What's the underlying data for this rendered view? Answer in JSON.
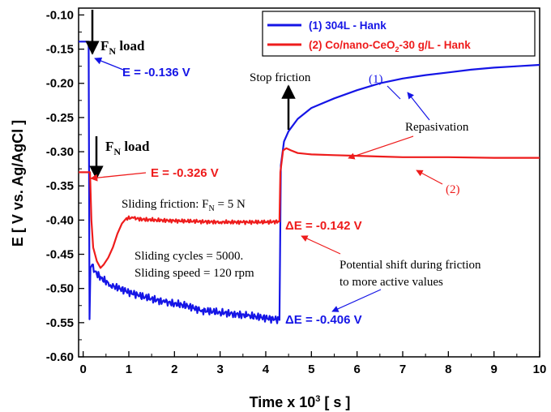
{
  "chart_data": {
    "type": "line",
    "xlabel": "Time x 10³ [ s ]",
    "ylabel": "E [ V vs. Ag/AgCl ]",
    "xlim": [
      -0.1,
      10
    ],
    "ylim": [
      -0.6,
      -0.09
    ],
    "xticks": [
      "0",
      "1",
      "2",
      "3",
      "4",
      "5",
      "6",
      "7",
      "8",
      "9",
      "10"
    ],
    "yticks": [
      "-0.10",
      "-0.15",
      "-0.20",
      "-0.25",
      "-0.30",
      "-0.35",
      "-0.40",
      "-0.45",
      "-0.50",
      "-0.55",
      "-0.60"
    ],
    "grid": false,
    "legend_position": "top-right",
    "series": [
      {
        "name": "(1) 304L - Hank",
        "color": "#1515e6",
        "points": [
          [
            -0.1,
            -0.139
          ],
          [
            0.08,
            -0.139
          ],
          [
            0.12,
            -0.139
          ],
          [
            0.14,
            -0.545
          ],
          [
            0.16,
            -0.47
          ],
          [
            0.2,
            -0.465
          ],
          [
            0.25,
            -0.475
          ],
          [
            0.4,
            -0.485
          ],
          [
            0.6,
            -0.495
          ],
          [
            0.8,
            -0.5
          ],
          [
            1.0,
            -0.505
          ],
          [
            1.2,
            -0.51
          ],
          [
            1.5,
            -0.515
          ],
          [
            1.8,
            -0.52
          ],
          [
            2.0,
            -0.522
          ],
          [
            2.3,
            -0.526
          ],
          [
            2.6,
            -0.532
          ],
          [
            3.0,
            -0.535
          ],
          [
            3.3,
            -0.537
          ],
          [
            3.6,
            -0.54
          ],
          [
            3.9,
            -0.542
          ],
          [
            4.2,
            -0.545
          ],
          [
            4.3,
            -0.546
          ],
          [
            4.33,
            -0.32
          ],
          [
            4.4,
            -0.285
          ],
          [
            4.5,
            -0.27
          ],
          [
            4.7,
            -0.252
          ],
          [
            5.0,
            -0.236
          ],
          [
            5.5,
            -0.222
          ],
          [
            6.0,
            -0.21
          ],
          [
            6.5,
            -0.2
          ],
          [
            7.0,
            -0.193
          ],
          [
            7.5,
            -0.188
          ],
          [
            8.0,
            -0.184
          ],
          [
            8.5,
            -0.18
          ],
          [
            9.0,
            -0.177
          ],
          [
            9.5,
            -0.175
          ],
          [
            10.0,
            -0.173
          ]
        ]
      },
      {
        "name": "(2) Co/nano-CeO₂-30 g/L - Hank",
        "color": "#ee1c1c",
        "points": [
          [
            -0.1,
            -0.33
          ],
          [
            0.1,
            -0.33
          ],
          [
            0.15,
            -0.33
          ],
          [
            0.18,
            -0.4
          ],
          [
            0.22,
            -0.44
          ],
          [
            0.3,
            -0.46
          ],
          [
            0.38,
            -0.47
          ],
          [
            0.45,
            -0.465
          ],
          [
            0.55,
            -0.455
          ],
          [
            0.65,
            -0.44
          ],
          [
            0.75,
            -0.42
          ],
          [
            0.85,
            -0.405
          ],
          [
            0.95,
            -0.397
          ],
          [
            1.1,
            -0.397
          ],
          [
            1.3,
            -0.399
          ],
          [
            1.6,
            -0.4
          ],
          [
            2.0,
            -0.401
          ],
          [
            2.5,
            -0.402
          ],
          [
            3.0,
            -0.403
          ],
          [
            3.5,
            -0.403
          ],
          [
            4.0,
            -0.403
          ],
          [
            4.3,
            -0.402
          ],
          [
            4.32,
            -0.33
          ],
          [
            4.38,
            -0.298
          ],
          [
            4.45,
            -0.295
          ],
          [
            4.55,
            -0.298
          ],
          [
            4.7,
            -0.302
          ],
          [
            5.0,
            -0.304
          ],
          [
            5.5,
            -0.305
          ],
          [
            6.0,
            -0.306
          ],
          [
            6.5,
            -0.307
          ],
          [
            7.0,
            -0.308
          ],
          [
            8.0,
            -0.308
          ],
          [
            9.0,
            -0.309
          ],
          [
            10.0,
            -0.309
          ]
        ]
      }
    ],
    "legend": {
      "entries": [
        "(1) 304L - Hank",
        "(2) Co/nano-CeO",
        "2",
        "-30 g/L - Hank"
      ]
    },
    "annotations": {
      "fn_load": "F",
      "fn_sub": "N",
      "fn_rest": " load",
      "e1": "E = -0.136 V",
      "e2": "E = -0.326 V",
      "stop_friction": "Stop friction",
      "label_1": "(1)",
      "label_2": "(2)",
      "repasivation": "Repasivation",
      "sliding_friction": "Sliding friction: F",
      "sliding_friction_tail": " = 5 N",
      "sliding_cycles": "Sliding cycles = 5000.",
      "sliding_speed": "Sliding speed = 120 rpm",
      "delta_e2": "ΔE = -0.142 V",
      "delta_e1": "ΔE = -0.406 V",
      "potential_shift_1": "Potential shift during friction",
      "potential_shift_2": "to more active values"
    }
  }
}
